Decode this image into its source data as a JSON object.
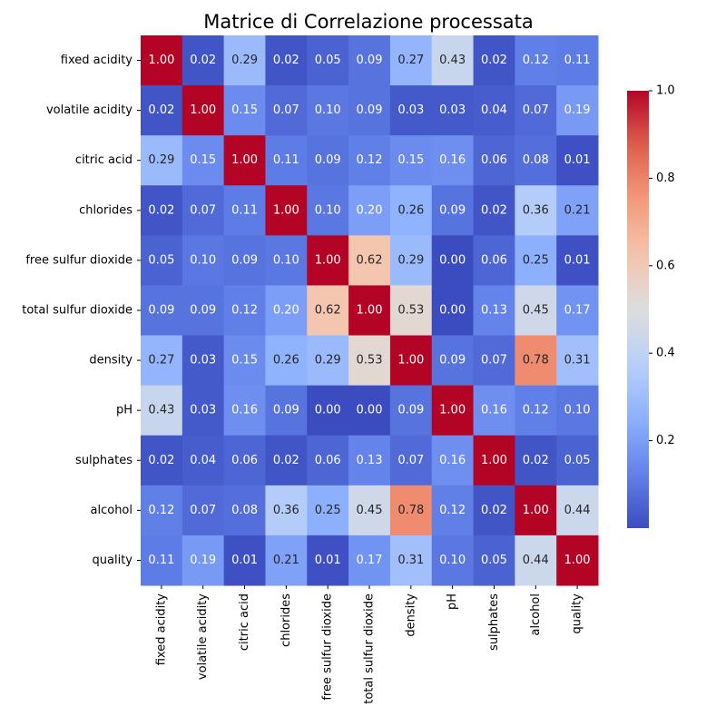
{
  "chart_data": {
    "type": "heatmap",
    "title": "Matrice di Correlazione processata",
    "colormap": "coolwarm",
    "value_format": "2 decimals",
    "rows": [
      "fixed acidity",
      "volatile acidity",
      "citric acid",
      "chlorides",
      "free sulfur dioxide",
      "total sulfur dioxide",
      "density",
      "pH",
      "sulphates",
      "alcohol",
      "quality"
    ],
    "columns": [
      "fixed acidity",
      "volatile acidity",
      "citric acid",
      "chlorides",
      "free sulfur dioxide",
      "total sulfur dioxide",
      "density",
      "pH",
      "sulphates",
      "alcohol",
      "quality"
    ],
    "values": [
      [
        1.0,
        0.02,
        0.29,
        0.02,
        0.05,
        0.09,
        0.27,
        0.43,
        0.02,
        0.12,
        0.11
      ],
      [
        0.02,
        1.0,
        0.15,
        0.07,
        0.1,
        0.09,
        0.03,
        0.03,
        0.04,
        0.07,
        0.19
      ],
      [
        0.29,
        0.15,
        1.0,
        0.11,
        0.09,
        0.12,
        0.15,
        0.16,
        0.06,
        0.08,
        0.01
      ],
      [
        0.02,
        0.07,
        0.11,
        1.0,
        0.1,
        0.2,
        0.26,
        0.09,
        0.02,
        0.36,
        0.21
      ],
      [
        0.05,
        0.1,
        0.09,
        0.1,
        1.0,
        0.62,
        0.29,
        0.0,
        0.06,
        0.25,
        0.01
      ],
      [
        0.09,
        0.09,
        0.12,
        0.2,
        0.62,
        1.0,
        0.53,
        0.0,
        0.13,
        0.45,
        0.17
      ],
      [
        0.27,
        0.03,
        0.15,
        0.26,
        0.29,
        0.53,
        1.0,
        0.09,
        0.07,
        0.78,
        0.31
      ],
      [
        0.43,
        0.03,
        0.16,
        0.09,
        0.0,
        0.0,
        0.09,
        1.0,
        0.16,
        0.12,
        0.1
      ],
      [
        0.02,
        0.04,
        0.06,
        0.02,
        0.06,
        0.13,
        0.07,
        0.16,
        1.0,
        0.02,
        0.05
      ],
      [
        0.12,
        0.07,
        0.08,
        0.36,
        0.25,
        0.45,
        0.78,
        0.12,
        0.02,
        1.0,
        0.44
      ],
      [
        0.11,
        0.19,
        0.01,
        0.21,
        0.01,
        0.17,
        0.31,
        0.1,
        0.05,
        0.44,
        1.0
      ]
    ],
    "colorbar": {
      "range": [
        0.0,
        1.0
      ],
      "ticks": [
        0.2,
        0.4,
        0.6,
        0.8,
        1.0
      ],
      "tick_labels": [
        "0.2",
        "0.4",
        "0.6",
        "0.8",
        "1.0"
      ]
    },
    "grid": false,
    "legend": "colorbar-right"
  }
}
